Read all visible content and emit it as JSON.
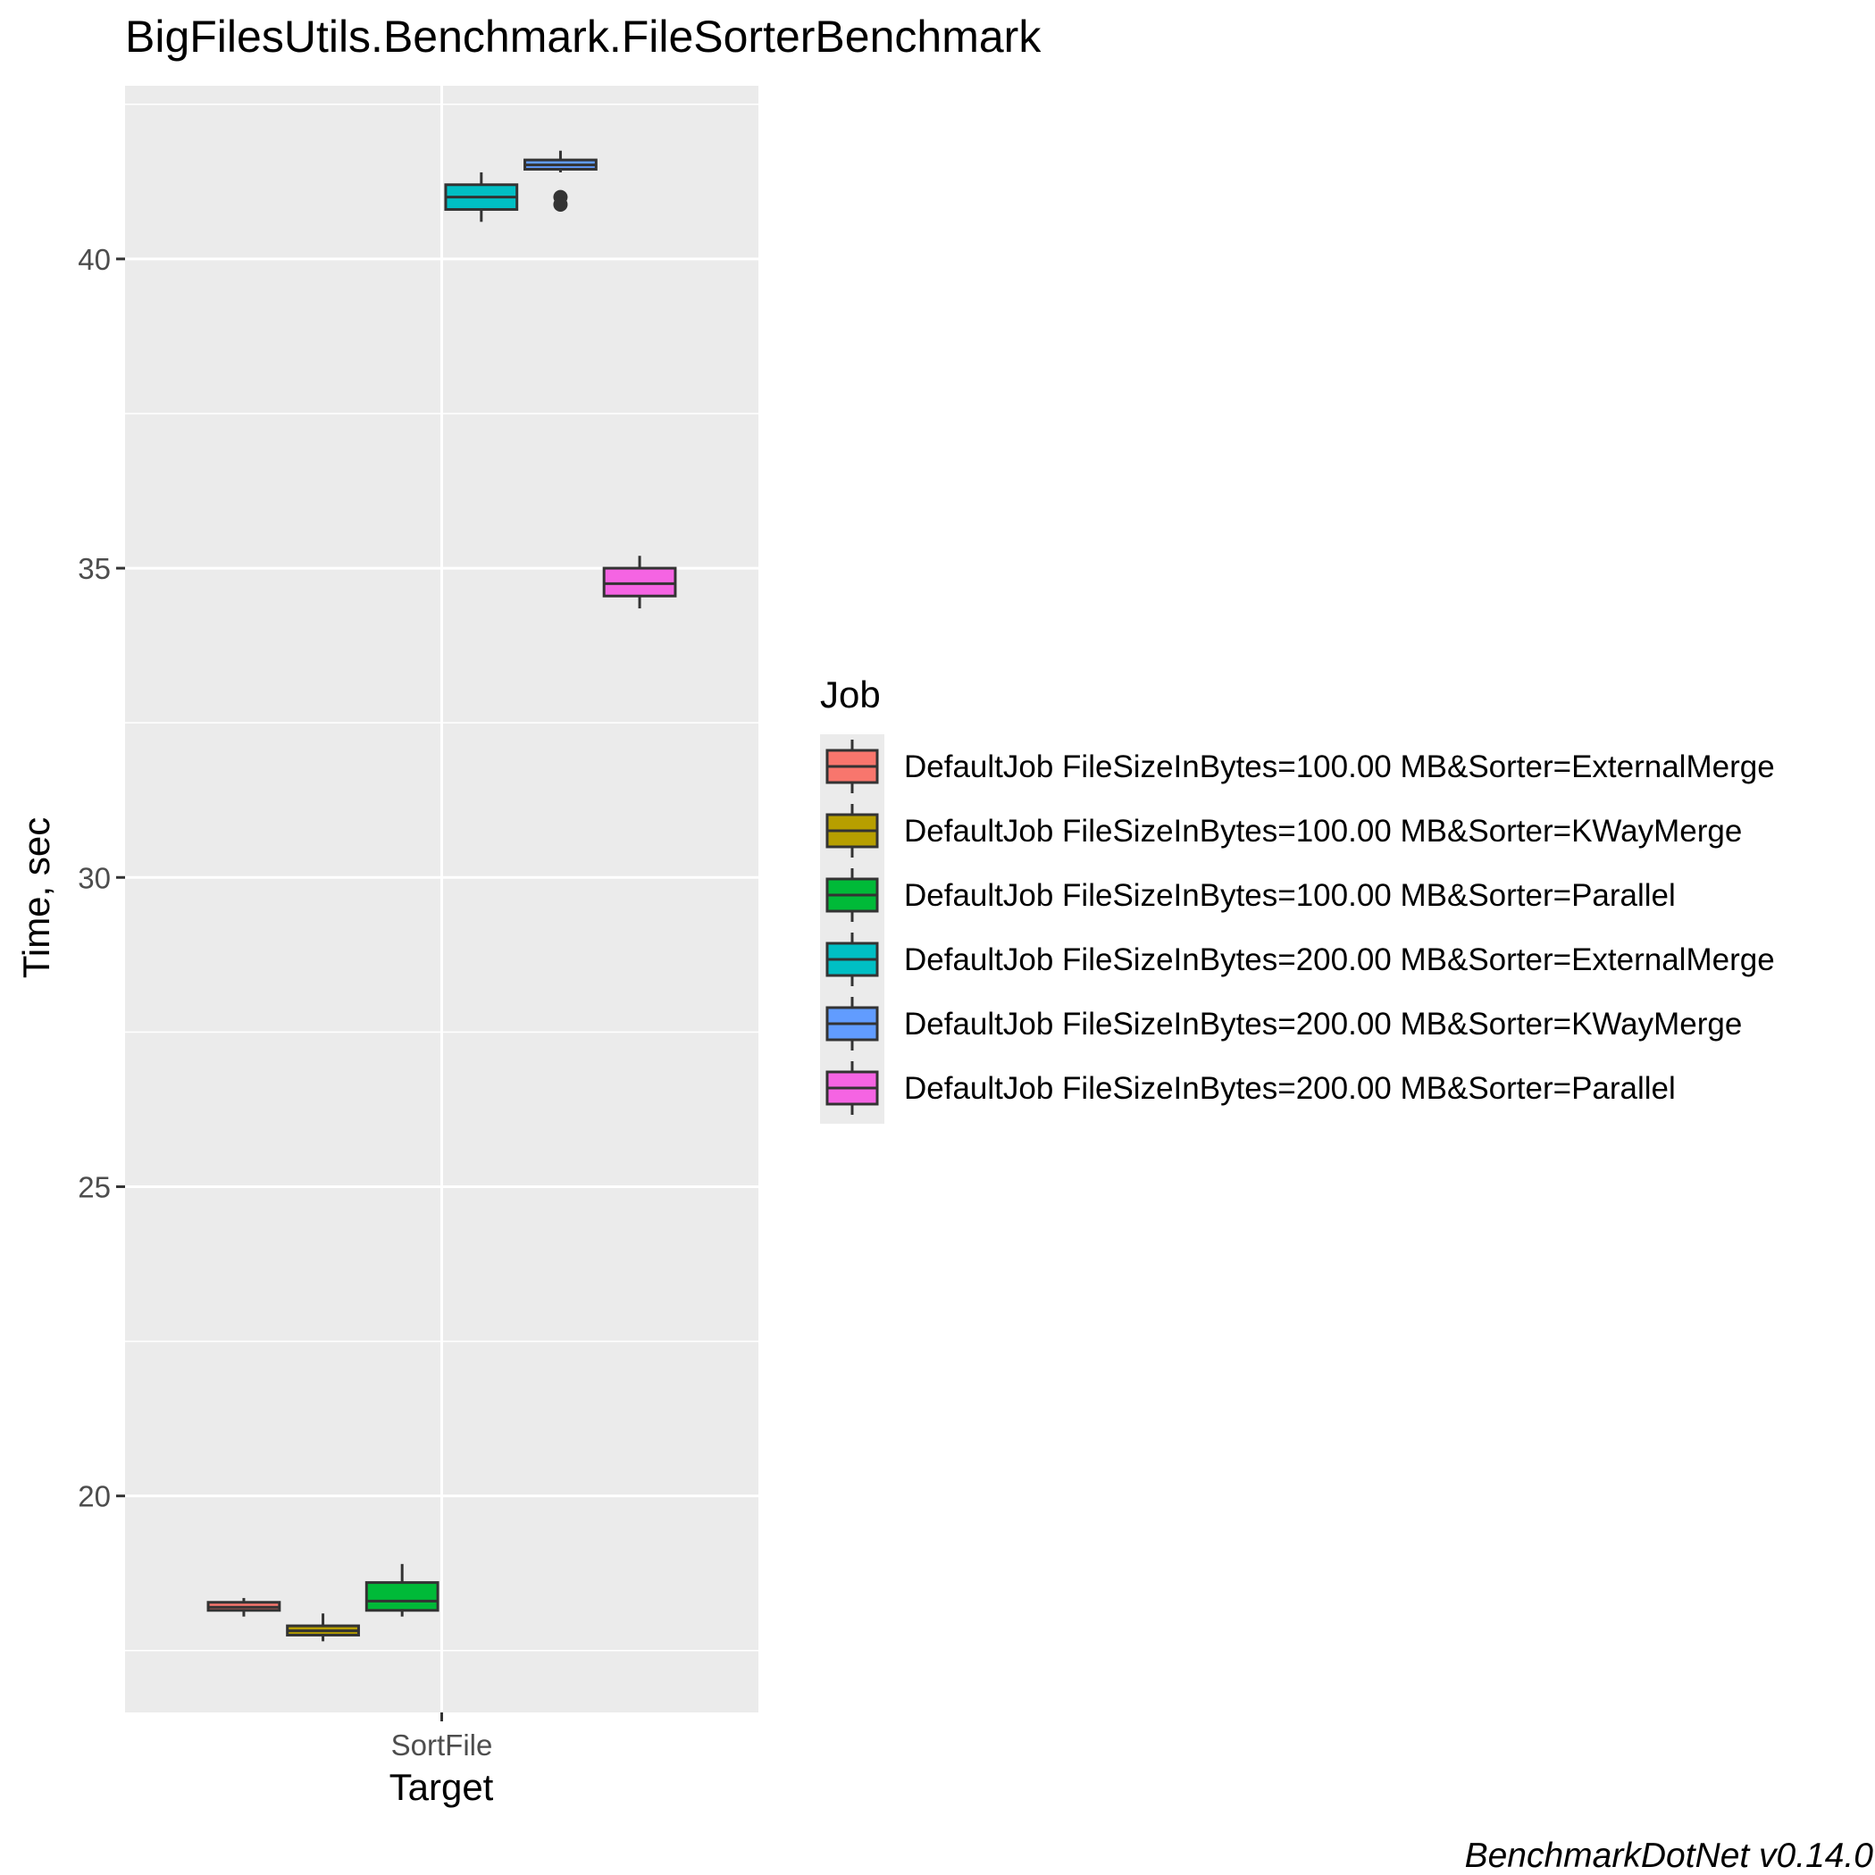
{
  "chart_data": {
    "type": "boxplot",
    "title": "BigFilesUtils.Benchmark.FileSorterBenchmark",
    "xlabel": "Target",
    "ylabel": "Time, sec",
    "categories": [
      "SortFile"
    ],
    "ylim": [
      16.5,
      42.8
    ],
    "yticks": [
      20,
      25,
      30,
      35,
      40
    ],
    "ytick_labels": [
      "20",
      "25",
      "30",
      "35",
      "40"
    ],
    "grid": true,
    "legend_title": "Job",
    "legend_position": "right",
    "caption": "BenchmarkDotNet v0.14.0",
    "series": [
      {
        "name": "DefaultJob FileSizeInBytes=100.00 MB&Sorter=ExternalMerge",
        "color": "#F8766D",
        "whisker_low": 18.05,
        "q1": 18.15,
        "median": 18.2,
        "q3": 18.28,
        "whisker_high": 18.35,
        "outliers": []
      },
      {
        "name": "DefaultJob FileSizeInBytes=100.00 MB&Sorter=KWayMerge",
        "color": "#B79F00",
        "whisker_low": 17.65,
        "q1": 17.75,
        "median": 17.82,
        "q3": 17.9,
        "whisker_high": 18.1,
        "outliers": []
      },
      {
        "name": "DefaultJob FileSizeInBytes=100.00 MB&Sorter=Parallel",
        "color": "#00BA38",
        "whisker_low": 18.05,
        "q1": 18.15,
        "median": 18.3,
        "q3": 18.6,
        "whisker_high": 18.9,
        "outliers": []
      },
      {
        "name": "DefaultJob FileSizeInBytes=200.00 MB&Sorter=ExternalMerge",
        "color": "#00BFC4",
        "whisker_low": 40.6,
        "q1": 40.8,
        "median": 41.0,
        "q3": 41.2,
        "whisker_high": 41.4,
        "outliers": []
      },
      {
        "name": "DefaultJob FileSizeInBytes=200.00 MB&Sorter=KWayMerge",
        "color": "#619CFF",
        "whisker_low": 41.4,
        "q1": 41.45,
        "median": 41.52,
        "q3": 41.6,
        "whisker_high": 41.75,
        "outliers": [
          41.0,
          40.88
        ]
      },
      {
        "name": "DefaultJob FileSizeInBytes=200.00 MB&Sorter=Parallel",
        "color": "#F564E3",
        "whisker_low": 34.35,
        "q1": 34.55,
        "median": 34.75,
        "q3": 35.0,
        "whisker_high": 35.2,
        "outliers": []
      }
    ]
  }
}
